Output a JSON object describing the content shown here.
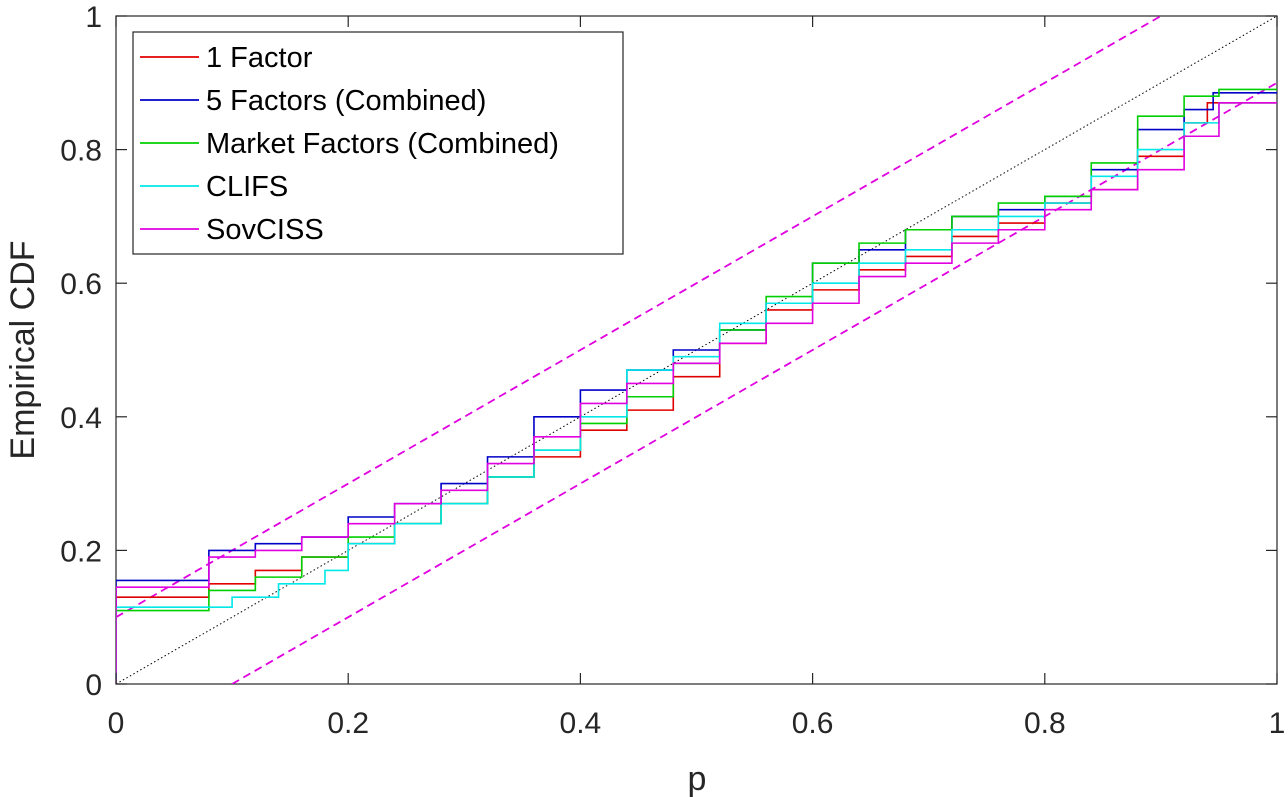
{
  "chart_data": {
    "type": "line",
    "xlabel": "p",
    "ylabel": "Empirical CDF",
    "xlim": [
      0,
      1
    ],
    "ylim": [
      0,
      1
    ],
    "xticks": [
      "0",
      "0.2",
      "0.4",
      "0.6",
      "0.8",
      "1"
    ],
    "yticks": [
      "0",
      "0.2",
      "0.4",
      "0.6",
      "0.8",
      "1"
    ],
    "grid": false,
    "legend_position": "top-left",
    "series": [
      {
        "name": "1 Factor",
        "color": "#e00000",
        "style": "stairs",
        "points": [
          [
            0,
            0
          ],
          [
            0,
            0.13
          ],
          [
            0.06,
            0.13
          ],
          [
            0.08,
            0.15
          ],
          [
            0.12,
            0.17
          ],
          [
            0.16,
            0.19
          ],
          [
            0.2,
            0.21
          ],
          [
            0.24,
            0.24
          ],
          [
            0.28,
            0.27
          ],
          [
            0.32,
            0.31
          ],
          [
            0.36,
            0.34
          ],
          [
            0.4,
            0.38
          ],
          [
            0.44,
            0.41
          ],
          [
            0.48,
            0.46
          ],
          [
            0.52,
            0.51
          ],
          [
            0.56,
            0.56
          ],
          [
            0.6,
            0.59
          ],
          [
            0.64,
            0.62
          ],
          [
            0.68,
            0.64
          ],
          [
            0.72,
            0.67
          ],
          [
            0.76,
            0.69
          ],
          [
            0.8,
            0.72
          ],
          [
            0.84,
            0.74
          ],
          [
            0.88,
            0.79
          ],
          [
            0.92,
            0.84
          ],
          [
            0.94,
            0.87
          ],
          [
            1,
            0.87
          ]
        ]
      },
      {
        "name": "5 Factors (Combined)",
        "color": "#0000c8",
        "style": "stairs",
        "points": [
          [
            0,
            0
          ],
          [
            0,
            0.155
          ],
          [
            0.06,
            0.155
          ],
          [
            0.08,
            0.2
          ],
          [
            0.12,
            0.21
          ],
          [
            0.16,
            0.22
          ],
          [
            0.2,
            0.25
          ],
          [
            0.24,
            0.27
          ],
          [
            0.28,
            0.3
          ],
          [
            0.32,
            0.34
          ],
          [
            0.36,
            0.4
          ],
          [
            0.4,
            0.44
          ],
          [
            0.44,
            0.47
          ],
          [
            0.48,
            0.5
          ],
          [
            0.52,
            0.53
          ],
          [
            0.56,
            0.57
          ],
          [
            0.6,
            0.63
          ],
          [
            0.64,
            0.65
          ],
          [
            0.68,
            0.68
          ],
          [
            0.72,
            0.7
          ],
          [
            0.76,
            0.71
          ],
          [
            0.8,
            0.73
          ],
          [
            0.84,
            0.77
          ],
          [
            0.88,
            0.83
          ],
          [
            0.92,
            0.86
          ],
          [
            0.945,
            0.885
          ],
          [
            1,
            0.885
          ]
        ]
      },
      {
        "name": "Market Factors (Combined)",
        "color": "#00d000",
        "style": "stairs",
        "points": [
          [
            0,
            0
          ],
          [
            0,
            0.11
          ],
          [
            0.05,
            0.11
          ],
          [
            0.08,
            0.14
          ],
          [
            0.12,
            0.16
          ],
          [
            0.16,
            0.19
          ],
          [
            0.2,
            0.22
          ],
          [
            0.24,
            0.24
          ],
          [
            0.28,
            0.27
          ],
          [
            0.32,
            0.31
          ],
          [
            0.36,
            0.35
          ],
          [
            0.4,
            0.39
          ],
          [
            0.44,
            0.43
          ],
          [
            0.48,
            0.48
          ],
          [
            0.52,
            0.53
          ],
          [
            0.56,
            0.58
          ],
          [
            0.6,
            0.63
          ],
          [
            0.64,
            0.66
          ],
          [
            0.68,
            0.68
          ],
          [
            0.72,
            0.7
          ],
          [
            0.76,
            0.72
          ],
          [
            0.8,
            0.73
          ],
          [
            0.84,
            0.78
          ],
          [
            0.88,
            0.85
          ],
          [
            0.92,
            0.88
          ],
          [
            0.95,
            0.89
          ],
          [
            1,
            0.89
          ]
        ]
      },
      {
        "name": "CLIFS",
        "color": "#00e8e8",
        "style": "stairs",
        "points": [
          [
            0,
            0
          ],
          [
            0,
            0.115
          ],
          [
            0.06,
            0.115
          ],
          [
            0.1,
            0.13
          ],
          [
            0.14,
            0.15
          ],
          [
            0.18,
            0.17
          ],
          [
            0.2,
            0.21
          ],
          [
            0.24,
            0.24
          ],
          [
            0.28,
            0.27
          ],
          [
            0.32,
            0.31
          ],
          [
            0.36,
            0.35
          ],
          [
            0.4,
            0.4
          ],
          [
            0.44,
            0.47
          ],
          [
            0.48,
            0.49
          ],
          [
            0.52,
            0.54
          ],
          [
            0.56,
            0.57
          ],
          [
            0.6,
            0.6
          ],
          [
            0.64,
            0.63
          ],
          [
            0.68,
            0.65
          ],
          [
            0.72,
            0.68
          ],
          [
            0.76,
            0.7
          ],
          [
            0.8,
            0.72
          ],
          [
            0.84,
            0.76
          ],
          [
            0.88,
            0.8
          ],
          [
            0.92,
            0.84
          ],
          [
            0.95,
            0.87
          ],
          [
            1,
            0.87
          ]
        ]
      },
      {
        "name": "SovCISS",
        "color": "#e000e0",
        "style": "stairs",
        "points": [
          [
            0,
            0
          ],
          [
            0,
            0.145
          ],
          [
            0.06,
            0.145
          ],
          [
            0.08,
            0.19
          ],
          [
            0.12,
            0.2
          ],
          [
            0.16,
            0.22
          ],
          [
            0.2,
            0.24
          ],
          [
            0.24,
            0.27
          ],
          [
            0.28,
            0.29
          ],
          [
            0.32,
            0.33
          ],
          [
            0.36,
            0.37
          ],
          [
            0.4,
            0.42
          ],
          [
            0.44,
            0.45
          ],
          [
            0.48,
            0.48
          ],
          [
            0.52,
            0.51
          ],
          [
            0.56,
            0.54
          ],
          [
            0.6,
            0.57
          ],
          [
            0.64,
            0.61
          ],
          [
            0.68,
            0.63
          ],
          [
            0.72,
            0.66
          ],
          [
            0.76,
            0.68
          ],
          [
            0.8,
            0.71
          ],
          [
            0.84,
            0.74
          ],
          [
            0.88,
            0.77
          ],
          [
            0.92,
            0.82
          ],
          [
            0.95,
            0.87
          ],
          [
            1,
            0.87
          ]
        ]
      }
    ],
    "reference_lines": [
      {
        "kind": "diagonal",
        "color": "#000000",
        "style": "dotted",
        "points": [
          [
            0,
            0
          ],
          [
            1,
            1
          ]
        ]
      },
      {
        "kind": "upper-band",
        "color": "#e000e0",
        "style": "dashed",
        "points": [
          [
            0,
            0.1
          ],
          [
            0.9,
            1
          ]
        ]
      },
      {
        "kind": "lower-band",
        "color": "#e000e0",
        "style": "dashed",
        "points": [
          [
            0.1,
            0
          ],
          [
            1,
            0.9
          ]
        ]
      }
    ]
  }
}
